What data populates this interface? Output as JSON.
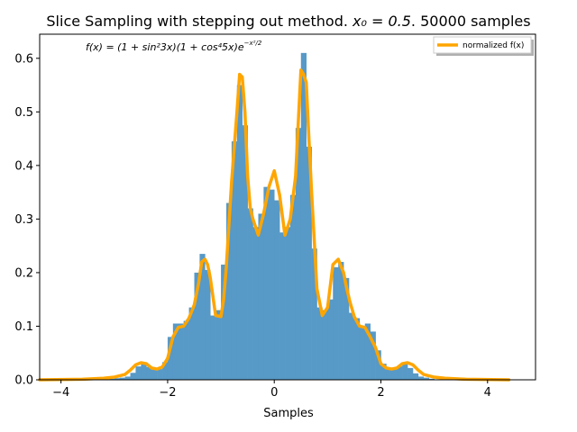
{
  "chart_data": {
    "type": "bar",
    "title": "Slice Sampling with stepping out method. x₀ = 0.5. 50000 samples",
    "title_prefix": "Slice Sampling with stepping out method. ",
    "title_math": "x₀ = 0.5",
    "title_suffix": ". 50000 samples",
    "xlabel": "Samples",
    "ylabel": "",
    "xlim": [
      -4.4,
      4.9
    ],
    "ylim": [
      0,
      0.645
    ],
    "xticks": [
      -4,
      -2,
      0,
      2,
      4
    ],
    "xtick_labels": [
      "−4",
      "−2",
      "0",
      "2",
      "4"
    ],
    "yticks": [
      0.0,
      0.1,
      0.2,
      0.3,
      0.4,
      0.5,
      0.6
    ],
    "ytick_labels": [
      "0.0",
      "0.1",
      "0.2",
      "0.3",
      "0.4",
      "0.5",
      "0.6"
    ],
    "annotation": "f(x) = (1 + sin²3x)(1 + cos⁴5x)e^(−x²/2)",
    "annotation_main": "f(x) = (1 + sin²3x)(1 + cos⁴5x)e",
    "annotation_exp": "−x²/2",
    "legend": {
      "position": "top-right",
      "entries": [
        "normalized f(x)"
      ]
    },
    "colors": {
      "hist": "#5799c7",
      "curve": "#ffa500"
    },
    "histogram": {
      "bin_width": 0.1,
      "bins": [
        {
          "x0": -3.1,
          "h": 0.002
        },
        {
          "x0": -3.0,
          "h": 0.003
        },
        {
          "x0": -2.9,
          "h": 0.004
        },
        {
          "x0": -2.8,
          "h": 0.006
        },
        {
          "x0": -2.7,
          "h": 0.013
        },
        {
          "x0": -2.6,
          "h": 0.025
        },
        {
          "x0": -2.5,
          "h": 0.03
        },
        {
          "x0": -2.4,
          "h": 0.024
        },
        {
          "x0": -2.3,
          "h": 0.019
        },
        {
          "x0": -2.2,
          "h": 0.02
        },
        {
          "x0": -2.1,
          "h": 0.033
        },
        {
          "x0": -2.0,
          "h": 0.08
        },
        {
          "x0": -1.9,
          "h": 0.105
        },
        {
          "x0": -1.8,
          "h": 0.105
        },
        {
          "x0": -1.7,
          "h": 0.11
        },
        {
          "x0": -1.6,
          "h": 0.135
        },
        {
          "x0": -1.5,
          "h": 0.2
        },
        {
          "x0": -1.4,
          "h": 0.235
        },
        {
          "x0": -1.3,
          "h": 0.205
        },
        {
          "x0": -1.2,
          "h": 0.12
        },
        {
          "x0": -1.1,
          "h": 0.13
        },
        {
          "x0": -1.0,
          "h": 0.215
        },
        {
          "x0": -0.9,
          "h": 0.33
        },
        {
          "x0": -0.8,
          "h": 0.445
        },
        {
          "x0": -0.7,
          "h": 0.55
        },
        {
          "x0": -0.6,
          "h": 0.475
        },
        {
          "x0": -0.5,
          "h": 0.32
        },
        {
          "x0": -0.4,
          "h": 0.285
        },
        {
          "x0": -0.3,
          "h": 0.31
        },
        {
          "x0": -0.2,
          "h": 0.36
        },
        {
          "x0": -0.1,
          "h": 0.355
        },
        {
          "x0": 0.0,
          "h": 0.335
        },
        {
          "x0": 0.1,
          "h": 0.275
        },
        {
          "x0": 0.2,
          "h": 0.285
        },
        {
          "x0": 0.3,
          "h": 0.345
        },
        {
          "x0": 0.4,
          "h": 0.47
        },
        {
          "x0": 0.5,
          "h": 0.61
        },
        {
          "x0": 0.6,
          "h": 0.435
        },
        {
          "x0": 0.7,
          "h": 0.245
        },
        {
          "x0": 0.8,
          "h": 0.135
        },
        {
          "x0": 0.9,
          "h": 0.13
        },
        {
          "x0": 1.0,
          "h": 0.15
        },
        {
          "x0": 1.1,
          "h": 0.21
        },
        {
          "x0": 1.2,
          "h": 0.22
        },
        {
          "x0": 1.3,
          "h": 0.19
        },
        {
          "x0": 1.4,
          "h": 0.125
        },
        {
          "x0": 1.5,
          "h": 0.115
        },
        {
          "x0": 1.6,
          "h": 0.1
        },
        {
          "x0": 1.7,
          "h": 0.105
        },
        {
          "x0": 1.8,
          "h": 0.09
        },
        {
          "x0": 1.9,
          "h": 0.055
        },
        {
          "x0": 2.0,
          "h": 0.03
        },
        {
          "x0": 2.1,
          "h": 0.022
        },
        {
          "x0": 2.2,
          "h": 0.02
        },
        {
          "x0": 2.3,
          "h": 0.025
        },
        {
          "x0": 2.4,
          "h": 0.03
        },
        {
          "x0": 2.5,
          "h": 0.022
        },
        {
          "x0": 2.6,
          "h": 0.012
        },
        {
          "x0": 2.7,
          "h": 0.006
        },
        {
          "x0": 2.8,
          "h": 0.004
        },
        {
          "x0": 2.9,
          "h": 0.002
        }
      ]
    },
    "series": [
      {
        "name": "normalized f(x)",
        "x": [
          -4.4,
          -3.6,
          -3.2,
          -3.0,
          -2.8,
          -2.7,
          -2.6,
          -2.5,
          -2.4,
          -2.3,
          -2.2,
          -2.1,
          -2.0,
          -1.9,
          -1.8,
          -1.7,
          -1.6,
          -1.5,
          -1.42,
          -1.36,
          -1.3,
          -1.25,
          -1.2,
          -1.1,
          -1.0,
          -0.95,
          -0.9,
          -0.8,
          -0.7,
          -0.65,
          -0.6,
          -0.55,
          -0.5,
          -0.45,
          -0.4,
          -0.3,
          -0.2,
          -0.1,
          0.0,
          0.1,
          0.2,
          0.3,
          0.4,
          0.45,
          0.5,
          0.55,
          0.6,
          0.65,
          0.7,
          0.8,
          0.9,
          1.0,
          1.1,
          1.2,
          1.3,
          1.36,
          1.42,
          1.5,
          1.6,
          1.7,
          1.8,
          1.9,
          2.0,
          2.1,
          2.2,
          2.3,
          2.4,
          2.5,
          2.6,
          2.7,
          2.8,
          3.0,
          3.2,
          3.6,
          4.4
        ],
        "y": [
          0.0,
          0.001,
          0.003,
          0.005,
          0.01,
          0.018,
          0.028,
          0.032,
          0.03,
          0.022,
          0.02,
          0.024,
          0.04,
          0.08,
          0.098,
          0.1,
          0.115,
          0.14,
          0.18,
          0.22,
          0.225,
          0.215,
          0.19,
          0.12,
          0.118,
          0.15,
          0.21,
          0.37,
          0.5,
          0.57,
          0.565,
          0.5,
          0.38,
          0.32,
          0.3,
          0.27,
          0.31,
          0.36,
          0.39,
          0.345,
          0.27,
          0.3,
          0.38,
          0.48,
          0.578,
          0.57,
          0.555,
          0.45,
          0.35,
          0.17,
          0.12,
          0.135,
          0.215,
          0.225,
          0.2,
          0.17,
          0.145,
          0.118,
          0.1,
          0.098,
          0.08,
          0.06,
          0.03,
          0.022,
          0.02,
          0.022,
          0.03,
          0.032,
          0.028,
          0.018,
          0.01,
          0.005,
          0.003,
          0.001,
          0.0
        ]
      }
    ]
  }
}
